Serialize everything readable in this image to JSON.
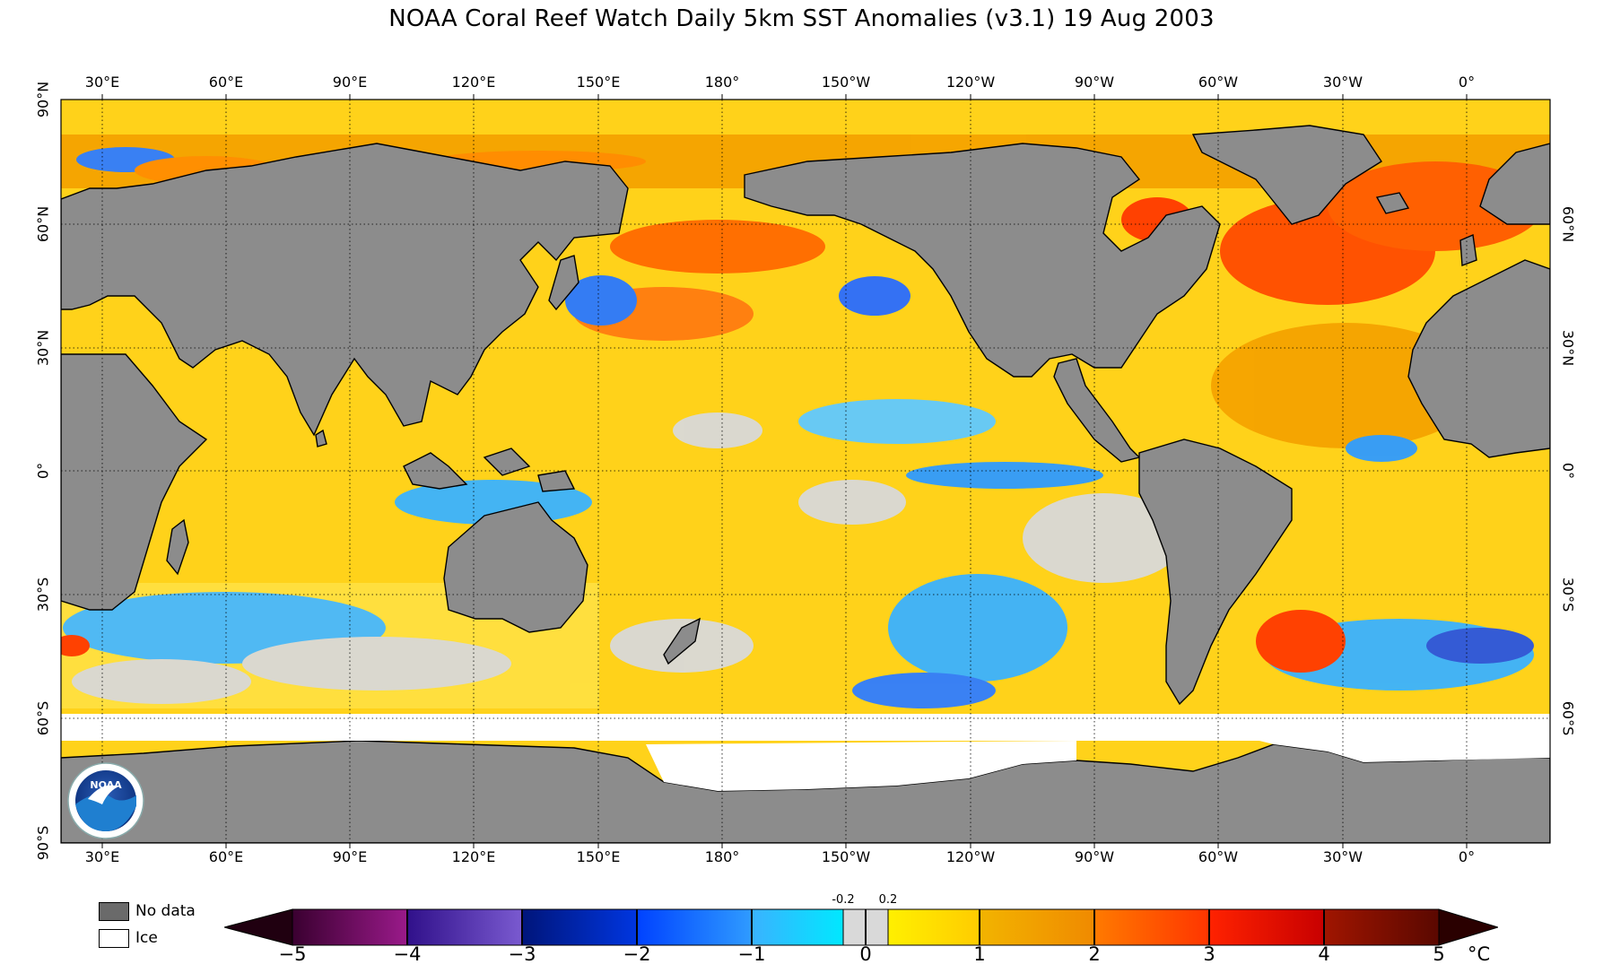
{
  "title": "NOAA Coral Reef Watch Daily 5km SST Anomalies  (v3.1)   19 Aug 2003",
  "lon_labels": [
    "30°E",
    "60°E",
    "90°E",
    "120°E",
    "150°E",
    "180°",
    "150°W",
    "120°W",
    "90°W",
    "60°W",
    "30°W",
    "0°"
  ],
  "lat_labels_left": [
    "90°N",
    "60°N",
    "30°N",
    "0°",
    "30°S",
    "60°S",
    "90°S"
  ],
  "lat_labels_right": [
    "60°N",
    "30°N",
    "0°",
    "30°S",
    "60°S"
  ],
  "legend": {
    "no_data": "No data",
    "ice": "Ice"
  },
  "colorbar": {
    "ticks": [
      "−5",
      "−4",
      "−3",
      "−2",
      "−1",
      "0",
      "1",
      "2",
      "3",
      "4",
      "5"
    ],
    "small_ticks": [
      "-0.2",
      "0.2"
    ],
    "unit": "°C",
    "range": [
      -5,
      5
    ]
  },
  "colors": {
    "land": "#8c8c8c",
    "ice": "#ffffff",
    "near_zero": "#d9d9d9",
    "anomaly_warm": "#ffd21a",
    "anomaly_hot": "#ff6a00",
    "anomaly_cool": "#2fb2ff"
  },
  "logo": "noaa-logo"
}
